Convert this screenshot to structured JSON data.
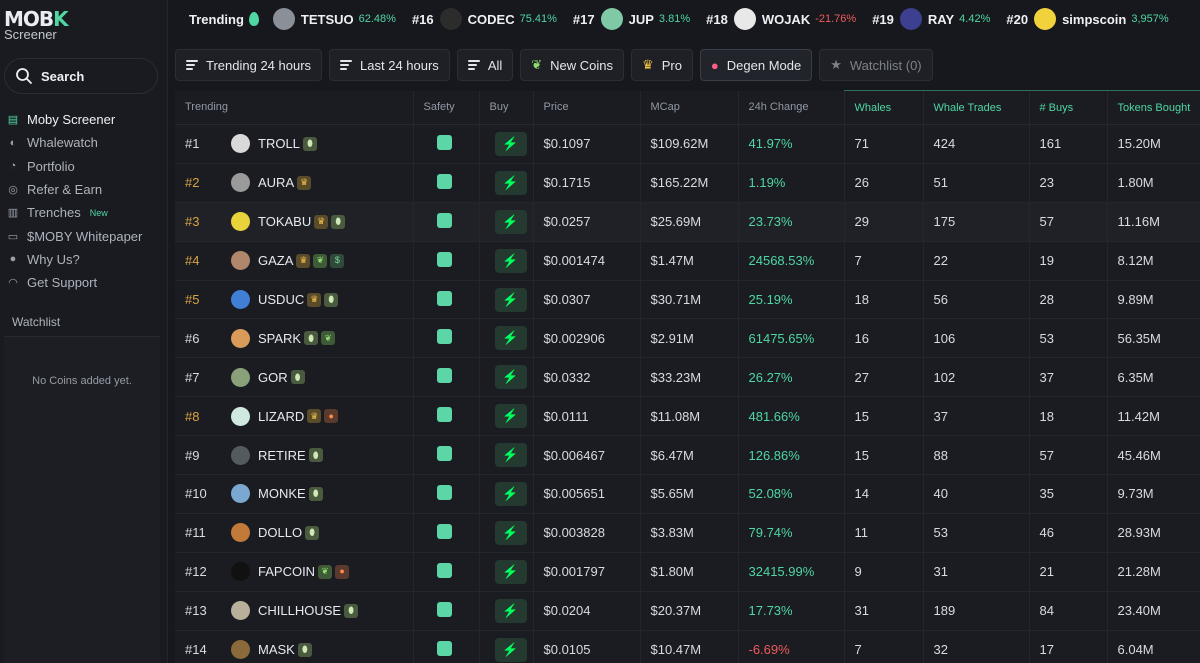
{
  "brand": {
    "logo_text_a": "MOB",
    "logo_text_b": "K",
    "subtitle": "Screener"
  },
  "search": {
    "label": "Search"
  },
  "nav": [
    {
      "label": "Moby Screener",
      "icon": "moby-logo-icon",
      "active": true
    },
    {
      "label": "Whalewatch",
      "icon": "whale-icon"
    },
    {
      "label": "Portfolio",
      "icon": "pie-chart-icon"
    },
    {
      "label": "Refer & Earn",
      "icon": "gift-icon"
    },
    {
      "label": "Trenches",
      "icon": "bar-chart-icon",
      "badge": "New"
    },
    {
      "label": "$MOBY Whitepaper",
      "icon": "book-icon"
    },
    {
      "label": "Why Us?",
      "icon": "info-icon"
    },
    {
      "label": "Get Support",
      "icon": "headset-icon"
    }
  ],
  "watchlist": {
    "title": "Watchlist",
    "empty": "No Coins added yet."
  },
  "ticker": {
    "label": "Trending",
    "items": [
      {
        "rank": "",
        "name": "TETSUO",
        "change": "62.48%",
        "dir": "pos",
        "logo_color": "#8a8f98"
      },
      {
        "rank": "#16",
        "name": "CODEC",
        "change": "75.41%",
        "dir": "pos",
        "logo_color": "#2c2c2c"
      },
      {
        "rank": "#17",
        "name": "JUP",
        "change": "3.81%",
        "dir": "pos",
        "logo_color": "#7fc9a6"
      },
      {
        "rank": "#18",
        "name": "WOJAK",
        "change": "-21.76%",
        "dir": "neg",
        "logo_color": "#e8e8e8"
      },
      {
        "rank": "#19",
        "name": "RAY",
        "change": "4.42%",
        "dir": "pos",
        "logo_color": "#3d3f8f"
      },
      {
        "rank": "#20",
        "name": "simpscoin",
        "change": "3,957%",
        "dir": "pos",
        "logo_color": "#f2d23c"
      }
    ]
  },
  "filters": [
    {
      "label": "Trending 24 hours",
      "icon": "menu-icon"
    },
    {
      "label": "Last 24 hours",
      "icon": "menu-icon"
    },
    {
      "label": "All",
      "icon": "menu-icon"
    },
    {
      "label": "New Coins",
      "icon": "seedling-icon"
    },
    {
      "label": "Pro",
      "icon": "crown-icon"
    },
    {
      "label": "Degen Mode",
      "icon": "devil-icon"
    },
    {
      "label": "Watchlist (0)",
      "icon": "star-icon"
    }
  ],
  "table": {
    "headers": [
      "Trending",
      "Safety",
      "Buy",
      "Price",
      "MCap",
      "24h Change",
      "Whales",
      "Whale Trades",
      "# Buys",
      "Tokens Bought"
    ],
    "rows": [
      {
        "rank": "#1",
        "gold": false,
        "name": "TROLL",
        "logo": "#d9d9d9",
        "badges": [
          "pill"
        ],
        "price": "$0.1097",
        "mcap": "$109.62M",
        "change": "41.97%",
        "dir": "pos",
        "whales": "71",
        "trades": "424",
        "buys": "161",
        "bought": "15.20M"
      },
      {
        "rank": "#2",
        "gold": true,
        "name": "AURA",
        "logo": "#9a9a9a",
        "badges": [
          "crown"
        ],
        "price": "$0.1715",
        "mcap": "$165.22M",
        "change": "1.19%",
        "dir": "pos",
        "whales": "26",
        "trades": "51",
        "buys": "23",
        "bought": "1.80M"
      },
      {
        "rank": "#3",
        "gold": true,
        "name": "TOKABU",
        "logo": "#e8d33a",
        "badges": [
          "crown",
          "pill"
        ],
        "price": "$0.0257",
        "mcap": "$25.69M",
        "change": "23.73%",
        "dir": "pos",
        "whales": "29",
        "trades": "175",
        "buys": "57",
        "bought": "11.16M"
      },
      {
        "rank": "#4",
        "gold": true,
        "name": "GAZA",
        "logo": "#b0876a",
        "badges": [
          "crown",
          "seed",
          "bag"
        ],
        "price": "$0.001474",
        "mcap": "$1.47M",
        "change": "24568.53%",
        "dir": "pos",
        "whales": "7",
        "trades": "22",
        "buys": "19",
        "bought": "8.12M"
      },
      {
        "rank": "#5",
        "gold": true,
        "name": "USDUC",
        "logo": "#3f7fd6",
        "badges": [
          "crown",
          "pill"
        ],
        "price": "$0.0307",
        "mcap": "$30.71M",
        "change": "25.19%",
        "dir": "pos",
        "whales": "18",
        "trades": "56",
        "buys": "28",
        "bought": "9.89M"
      },
      {
        "rank": "#6",
        "gold": false,
        "name": "SPARK",
        "logo": "#d99a5a",
        "badges": [
          "pill",
          "seed"
        ],
        "price": "$0.002906",
        "mcap": "$2.91M",
        "change": "61475.65%",
        "dir": "pos",
        "whales": "16",
        "trades": "106",
        "buys": "53",
        "bought": "56.35M"
      },
      {
        "rank": "#7",
        "gold": false,
        "name": "GOR",
        "logo": "#8aa07a",
        "badges": [
          "pill"
        ],
        "price": "$0.0332",
        "mcap": "$33.23M",
        "change": "26.27%",
        "dir": "pos",
        "whales": "27",
        "trades": "102",
        "buys": "37",
        "bought": "6.35M"
      },
      {
        "rank": "#8",
        "gold": true,
        "name": "LIZARD",
        "logo": "#cfe8e0",
        "badges": [
          "crown",
          "orange"
        ],
        "price": "$0.0111",
        "mcap": "$11.08M",
        "change": "481.66%",
        "dir": "pos",
        "whales": "15",
        "trades": "37",
        "buys": "18",
        "bought": "11.42M"
      },
      {
        "rank": "#9",
        "gold": false,
        "name": "RETIRE",
        "logo": "#555a60",
        "badges": [
          "pill"
        ],
        "price": "$0.006467",
        "mcap": "$6.47M",
        "change": "126.86%",
        "dir": "pos",
        "whales": "15",
        "trades": "88",
        "buys": "57",
        "bought": "45.46M"
      },
      {
        "rank": "#10",
        "gold": false,
        "name": "MONKE",
        "logo": "#7aa8d0",
        "badges": [
          "pill"
        ],
        "price": "$0.005651",
        "mcap": "$5.65M",
        "change": "52.08%",
        "dir": "pos",
        "whales": "14",
        "trades": "40",
        "buys": "35",
        "bought": "9.73M"
      },
      {
        "rank": "#11",
        "gold": false,
        "name": "DOLLO",
        "logo": "#c27a3a",
        "badges": [
          "pill"
        ],
        "price": "$0.003828",
        "mcap": "$3.83M",
        "change": "79.74%",
        "dir": "pos",
        "whales": "11",
        "trades": "53",
        "buys": "46",
        "bought": "28.93M"
      },
      {
        "rank": "#12",
        "gold": false,
        "name": "FAPCOIN",
        "logo": "#111111",
        "badges": [
          "seed",
          "orange"
        ],
        "price": "$0.001797",
        "mcap": "$1.80M",
        "change": "32415.99%",
        "dir": "pos",
        "whales": "9",
        "trades": "31",
        "buys": "21",
        "bought": "21.28M"
      },
      {
        "rank": "#13",
        "gold": false,
        "name": "CHILLHOUSE",
        "logo": "#b8b09a",
        "badges": [
          "pill"
        ],
        "price": "$0.0204",
        "mcap": "$20.37M",
        "change": "17.73%",
        "dir": "pos",
        "whales": "31",
        "trades": "189",
        "buys": "84",
        "bought": "23.40M"
      },
      {
        "rank": "#14",
        "gold": false,
        "name": "MASK",
        "logo": "#8a6a3a",
        "badges": [
          "pill"
        ],
        "price": "$0.0105",
        "mcap": "$10.47M",
        "change": "-6.69%",
        "dir": "neg",
        "whales": "7",
        "trades": "32",
        "buys": "17",
        "bought": "6.04M"
      }
    ]
  }
}
